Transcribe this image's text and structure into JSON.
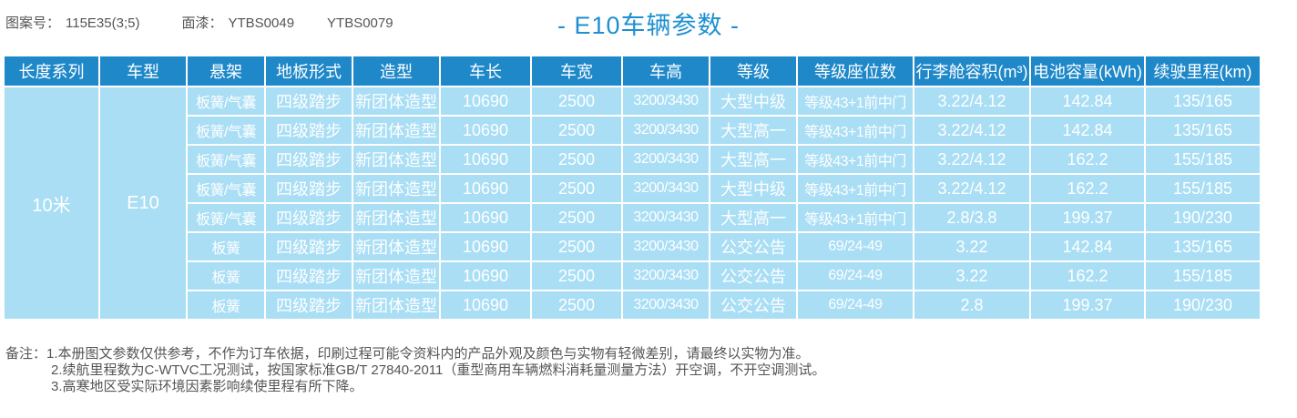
{
  "header": {
    "pattern_label": "图案号：",
    "pattern_value": "115E35(3;5)",
    "paint_label": "面漆：",
    "paint_value1": "YTBS0049",
    "paint_value2": "YTBS0079",
    "title": "- E10车辆参数 -"
  },
  "table": {
    "columns": [
      "长度系列",
      "车型",
      "悬架",
      "地板形式",
      "造型",
      "车长",
      "车宽",
      "车高",
      "等级",
      "等级座位数",
      "行李舱容积(m³)",
      "电池容量(kWh)",
      "续驶里程(km)"
    ],
    "length_series": "10米",
    "model": "E10",
    "rows": [
      [
        "板簧/气囊",
        "四级踏步",
        "新团体造型",
        "10690",
        "2500",
        "3200/3430",
        "大型中级",
        "等级43+1前中门",
        "3.22/4.12",
        "142.84",
        "135/165"
      ],
      [
        "板簧/气囊",
        "四级踏步",
        "新团体造型",
        "10690",
        "2500",
        "3200/3430",
        "大型高一",
        "等级43+1前中门",
        "3.22/4.12",
        "142.84",
        "135/165"
      ],
      [
        "板簧/气囊",
        "四级踏步",
        "新团体造型",
        "10690",
        "2500",
        "3200/3430",
        "大型高一",
        "等级43+1前中门",
        "3.22/4.12",
        "162.2",
        "155/185"
      ],
      [
        "板簧/气囊",
        "四级踏步",
        "新团体造型",
        "10690",
        "2500",
        "3200/3430",
        "大型中级",
        "等级43+1前中门",
        "3.22/4.12",
        "162.2",
        "155/185"
      ],
      [
        "板簧/气囊",
        "四级踏步",
        "新团体造型",
        "10690",
        "2500",
        "3200/3430",
        "大型高一",
        "等级43+1前中门",
        "2.8/3.8",
        "199.37",
        "190/230"
      ],
      [
        "板簧",
        "四级踏步",
        "新团体造型",
        "10690",
        "2500",
        "3200/3430",
        "公交公告",
        "69/24-49",
        "3.22",
        "142.84",
        "135/165"
      ],
      [
        "板簧",
        "四级踏步",
        "新团体造型",
        "10690",
        "2500",
        "3200/3430",
        "公交公告",
        "69/24-49",
        "3.22",
        "162.2",
        "155/185"
      ],
      [
        "板簧",
        "四级踏步",
        "新团体造型",
        "10690",
        "2500",
        "3200/3430",
        "公交公告",
        "69/24-49",
        "2.8",
        "199.37",
        "190/230"
      ]
    ]
  },
  "notes": {
    "label": "备注：",
    "items": [
      "1.本册图文参数仅供参考，不作为订车依据，印刷过程可能令资料内的产品外观及颜色与实物有轻微差别，请最终以实物为准。",
      "2.续航里程数为C-WTVC工况测试，按国家标准GB/T 27840-2011（重型商用车辆燃料消耗量测量方法）开空调，不开空调测试。",
      "3.高寒地区受实际环境因素影响续使里程有所下降。"
    ]
  },
  "colors": {
    "header_bg": "#1f88c9",
    "cell_bg": "#a9def5",
    "title": "#1e8fd0",
    "text_gray": "#555555"
  }
}
